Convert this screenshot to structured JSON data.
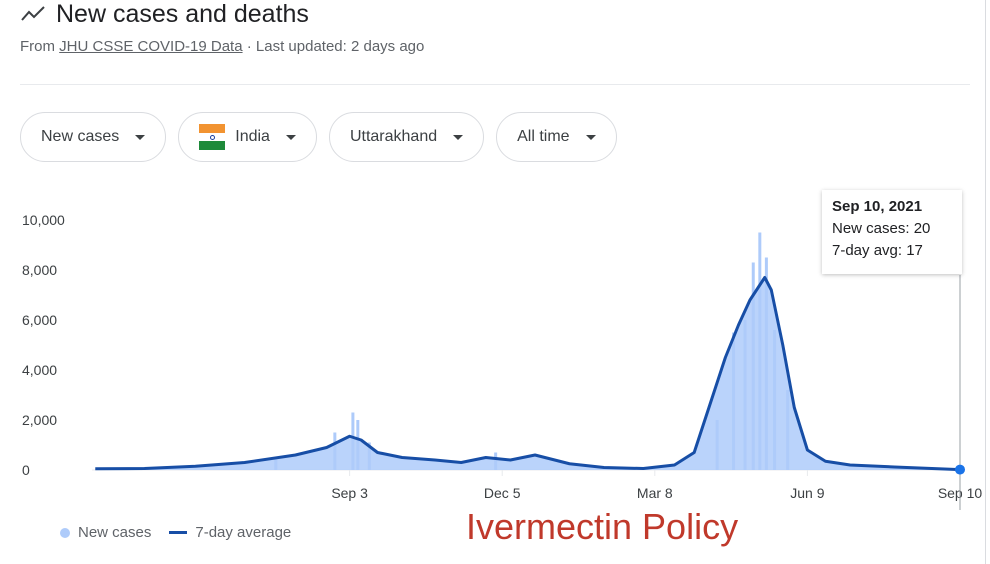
{
  "header": {
    "title": "New cases and deaths",
    "source_prefix": "From",
    "source_link": "JHU CSSE COVID-19 Data",
    "source_suffix": "· Last updated: 2 days ago"
  },
  "filters": [
    {
      "label": "New cases"
    },
    {
      "label": "India"
    },
    {
      "label": "Uttarakhand"
    },
    {
      "label": "All time"
    }
  ],
  "tooltip": {
    "date": "Sep 10, 2021",
    "new_cases": "New cases: 20",
    "avg": "7-day avg: 17"
  },
  "legend": {
    "bars": "New cases",
    "line": "7-day average"
  },
  "caption": "Ivermectin Policy",
  "colors": {
    "bar": "#aecbfa",
    "line": "#174ea6",
    "marker": "#1a73e8",
    "grid": "#e8eaed",
    "caption": "#c0392b"
  },
  "chart_data": {
    "type": "bar",
    "title": "New cases and deaths",
    "ylim": [
      0,
      10000
    ],
    "y_ticks": [
      0,
      2000,
      4000,
      6000,
      8000,
      10000
    ],
    "y_tick_labels": [
      "0",
      "2,000",
      "4,000",
      "6,000",
      "8,000",
      "10,000"
    ],
    "x_ticks": [
      "Sep 3",
      "Dec 5",
      "Mar 8",
      "Jun 9",
      "Sep 10"
    ],
    "series": [
      {
        "name": "7-day average",
        "type": "line",
        "x": [
          "2020-04-01",
          "2020-05-01",
          "2020-06-01",
          "2020-07-01",
          "2020-08-01",
          "2020-08-20",
          "2020-09-03",
          "2020-09-10",
          "2020-09-20",
          "2020-10-05",
          "2020-10-25",
          "2020-11-10",
          "2020-11-25",
          "2020-12-10",
          "2020-12-25",
          "2021-01-15",
          "2021-02-05",
          "2021-03-01",
          "2021-03-20",
          "2021-04-01",
          "2021-04-10",
          "2021-04-20",
          "2021-04-28",
          "2021-05-05",
          "2021-05-10",
          "2021-05-14",
          "2021-05-18",
          "2021-05-25",
          "2021-06-01",
          "2021-06-09",
          "2021-06-20",
          "2021-07-05",
          "2021-08-01",
          "2021-09-10"
        ],
        "values": [
          50,
          60,
          150,
          300,
          600,
          900,
          1350,
          1200,
          700,
          500,
          400,
          300,
          500,
          400,
          600,
          250,
          100,
          60,
          200,
          700,
          2500,
          4500,
          5800,
          6800,
          7300,
          7700,
          7200,
          5000,
          2500,
          800,
          350,
          200,
          120,
          17
        ]
      },
      {
        "name": "New cases",
        "type": "bar",
        "x": [
          "2020-07-20",
          "2020-08-25",
          "2020-09-05",
          "2020-09-08",
          "2020-09-15",
          "2020-12-01",
          "2021-04-15",
          "2021-04-25",
          "2021-05-02",
          "2021-05-07",
          "2021-05-11",
          "2021-05-15",
          "2021-05-20",
          "2021-05-28",
          "2021-09-10"
        ],
        "values": [
          500,
          1500,
          2300,
          2000,
          1100,
          700,
          2000,
          5500,
          6000,
          8300,
          9500,
          8500,
          5600,
          3200,
          20
        ]
      }
    ]
  }
}
